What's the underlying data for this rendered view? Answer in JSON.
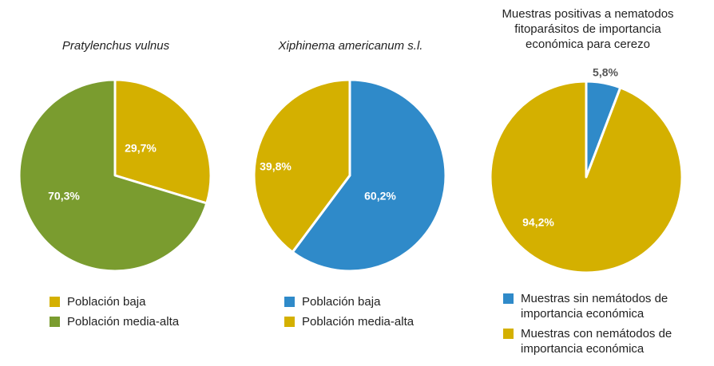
{
  "colors": {
    "gold": "#d4b000",
    "green": "#7a9c2f",
    "blue": "#2f8ac9"
  },
  "chart_data": [
    {
      "type": "pie",
      "title": "Pratylenchus vulnus",
      "slices": [
        {
          "name": "Población baja",
          "value": 29.7,
          "label": "29,7%",
          "color": "#d4b000"
        },
        {
          "name": "Población media-alta",
          "value": 70.3,
          "label": "70,3%",
          "color": "#7a9c2f"
        }
      ],
      "legend": [
        {
          "label": "Población baja",
          "color": "#d4b000"
        },
        {
          "label": "Población media-alta",
          "color": "#7a9c2f"
        }
      ],
      "legend_position": "bottom"
    },
    {
      "type": "pie",
      "title": "Xiphinema americanum s.l.",
      "slices": [
        {
          "name": "Población baja",
          "value": 60.2,
          "label": "60,2%",
          "color": "#2f8ac9"
        },
        {
          "name": "Población media-alta",
          "value": 39.8,
          "label": "39,8%",
          "color": "#d4b000"
        }
      ],
      "legend": [
        {
          "label": "Población baja",
          "color": "#2f8ac9"
        },
        {
          "label": "Población media-alta",
          "color": "#d4b000"
        }
      ],
      "legend_position": "bottom"
    },
    {
      "type": "pie",
      "title": "Muestras positivas a nematodos fitoparásitos de importancia económica para cerezo",
      "slices": [
        {
          "name": "Muestras sin nemátodos de importancia económica",
          "value": 5.8,
          "label": "5,8%",
          "color": "#2f8ac9"
        },
        {
          "name": "Muestras con nemátodos de importancia económica",
          "value": 94.2,
          "label": "94,2%",
          "color": "#d4b000"
        }
      ],
      "legend": [
        {
          "label": "Muestras sin nemátodos de importancia económica",
          "color": "#2f8ac9"
        },
        {
          "label": "Muestras con nemátodos de importancia económica",
          "color": "#d4b000"
        }
      ],
      "legend_position": "bottom"
    }
  ]
}
